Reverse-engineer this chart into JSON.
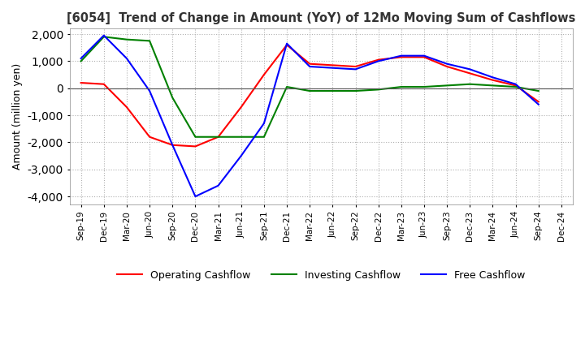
{
  "title": "[6054]  Trend of Change in Amount (YoY) of 12Mo Moving Sum of Cashflows",
  "ylabel": "Amount (million yen)",
  "xlabels": [
    "Sep-19",
    "Dec-19",
    "Mar-20",
    "Jun-20",
    "Sep-20",
    "Dec-20",
    "Mar-21",
    "Jun-21",
    "Sep-21",
    "Dec-21",
    "Mar-22",
    "Jun-22",
    "Sep-22",
    "Dec-22",
    "Mar-23",
    "Jun-23",
    "Sep-23",
    "Dec-23",
    "Mar-24",
    "Jun-24",
    "Sep-24",
    "Dec-24"
  ],
  "operating": [
    200,
    150,
    -700,
    -1800,
    -2100,
    -2150,
    -1800,
    -700,
    500,
    1600,
    900,
    850,
    800,
    1050,
    1150,
    1150,
    800,
    550,
    300,
    100,
    -500,
    null
  ],
  "investing": [
    1000,
    1900,
    1800,
    1750,
    -350,
    -1800,
    -1800,
    -1800,
    -1800,
    50,
    -100,
    -100,
    -100,
    -50,
    50,
    50,
    100,
    150,
    100,
    50,
    -100,
    null
  ],
  "free": [
    1100,
    1950,
    1100,
    -100,
    -2100,
    -4000,
    -3600,
    -2500,
    -1300,
    1650,
    800,
    750,
    700,
    1000,
    1200,
    1200,
    900,
    700,
    400,
    150,
    -600,
    null
  ],
  "ylim": [
    -4300,
    2200
  ],
  "yticks": [
    -4000,
    -3000,
    -2000,
    -1000,
    0,
    1000,
    2000
  ],
  "colors": {
    "operating": "#ff0000",
    "investing": "#008000",
    "free": "#0000ff"
  },
  "legend": [
    "Operating Cashflow",
    "Investing Cashflow",
    "Free Cashflow"
  ],
  "grid_color": "#b0b0b0",
  "background_color": "#ffffff"
}
